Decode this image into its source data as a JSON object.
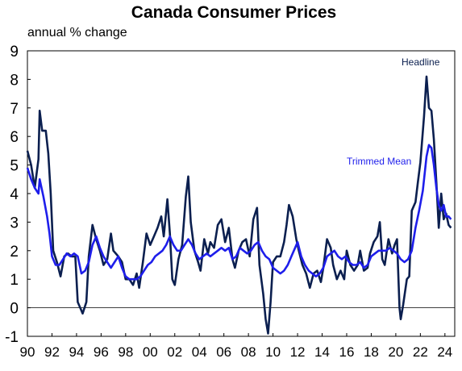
{
  "chart_data": {
    "type": "line",
    "title": "Canada Consumer Prices",
    "subtitle": "annual % change",
    "xlabel": "",
    "ylabel": "",
    "xlim": [
      1990,
      2024.8
    ],
    "ylim": [
      -1,
      9
    ],
    "y_ticks": [
      "9",
      "8",
      "7",
      "6",
      "5",
      "4",
      "3",
      "2",
      "1",
      "0",
      "-1"
    ],
    "x_ticks": [
      "90",
      "92",
      "94",
      "96",
      "98",
      "00",
      "02",
      "04",
      "06",
      "08",
      "10",
      "12",
      "14",
      "16",
      "18",
      "20",
      "22",
      "24"
    ],
    "legend": "inline labels",
    "grid": false,
    "zero_line": true,
    "series": [
      {
        "name": "Headline",
        "color": "#0b1f4f",
        "points": [
          [
            1990.0,
            5.5
          ],
          [
            1990.3,
            5.0
          ],
          [
            1990.6,
            4.2
          ],
          [
            1990.9,
            5.2
          ],
          [
            1991.0,
            6.9
          ],
          [
            1991.2,
            6.2
          ],
          [
            1991.5,
            6.2
          ],
          [
            1991.7,
            5.4
          ],
          [
            1991.9,
            4.0
          ],
          [
            1992.1,
            2.0
          ],
          [
            1992.4,
            1.6
          ],
          [
            1992.7,
            1.1
          ],
          [
            1993.0,
            1.8
          ],
          [
            1993.3,
            1.9
          ],
          [
            1993.6,
            1.8
          ],
          [
            1993.9,
            1.8
          ],
          [
            1994.1,
            0.2
          ],
          [
            1994.3,
            0.0
          ],
          [
            1994.5,
            -0.2
          ],
          [
            1994.8,
            0.2
          ],
          [
            1995.0,
            1.8
          ],
          [
            1995.3,
            2.9
          ],
          [
            1995.6,
            2.4
          ],
          [
            1995.9,
            2.0
          ],
          [
            1996.2,
            1.5
          ],
          [
            1996.5,
            1.7
          ],
          [
            1996.8,
            2.6
          ],
          [
            1997.0,
            2.0
          ],
          [
            1997.4,
            1.8
          ],
          [
            1997.7,
            1.6
          ],
          [
            1998.0,
            1.0
          ],
          [
            1998.3,
            1.0
          ],
          [
            1998.6,
            0.8
          ],
          [
            1998.9,
            1.2
          ],
          [
            1999.1,
            0.7
          ],
          [
            1999.4,
            1.6
          ],
          [
            1999.7,
            2.6
          ],
          [
            2000.0,
            2.2
          ],
          [
            2000.3,
            2.5
          ],
          [
            2000.6,
            2.8
          ],
          [
            2000.9,
            3.2
          ],
          [
            2001.1,
            2.5
          ],
          [
            2001.4,
            3.8
          ],
          [
            2001.6,
            2.6
          ],
          [
            2001.8,
            1.0
          ],
          [
            2002.0,
            0.8
          ],
          [
            2002.3,
            1.7
          ],
          [
            2002.6,
            2.2
          ],
          [
            2002.9,
            3.9
          ],
          [
            2003.1,
            4.6
          ],
          [
            2003.3,
            3.0
          ],
          [
            2003.6,
            2.0
          ],
          [
            2003.9,
            1.6
          ],
          [
            2004.1,
            1.3
          ],
          [
            2004.4,
            2.4
          ],
          [
            2004.7,
            1.9
          ],
          [
            2004.9,
            2.3
          ],
          [
            2005.2,
            2.1
          ],
          [
            2005.5,
            2.9
          ],
          [
            2005.8,
            3.1
          ],
          [
            2006.1,
            2.3
          ],
          [
            2006.4,
            2.8
          ],
          [
            2006.7,
            1.7
          ],
          [
            2006.9,
            1.4
          ],
          [
            2007.2,
            2.0
          ],
          [
            2007.5,
            2.3
          ],
          [
            2007.8,
            2.4
          ],
          [
            2008.1,
            1.8
          ],
          [
            2008.4,
            3.1
          ],
          [
            2008.7,
            3.5
          ],
          [
            2008.9,
            1.5
          ],
          [
            2009.2,
            0.5
          ],
          [
            2009.4,
            -0.4
          ],
          [
            2009.6,
            -0.9
          ],
          [
            2009.8,
            0.2
          ],
          [
            2010.0,
            1.6
          ],
          [
            2010.3,
            1.8
          ],
          [
            2010.6,
            1.8
          ],
          [
            2010.9,
            2.3
          ],
          [
            2011.1,
            2.9
          ],
          [
            2011.3,
            3.6
          ],
          [
            2011.6,
            3.2
          ],
          [
            2011.9,
            2.4
          ],
          [
            2012.1,
            2.0
          ],
          [
            2012.4,
            1.5
          ],
          [
            2012.7,
            1.2
          ],
          [
            2013.0,
            0.7
          ],
          [
            2013.3,
            1.2
          ],
          [
            2013.6,
            1.3
          ],
          [
            2013.9,
            0.9
          ],
          [
            2014.1,
            1.4
          ],
          [
            2014.4,
            2.4
          ],
          [
            2014.7,
            2.1
          ],
          [
            2014.9,
            1.5
          ],
          [
            2015.2,
            1.0
          ],
          [
            2015.5,
            1.3
          ],
          [
            2015.8,
            1.0
          ],
          [
            2016.0,
            2.0
          ],
          [
            2016.3,
            1.5
          ],
          [
            2016.6,
            1.3
          ],
          [
            2016.9,
            1.5
          ],
          [
            2017.1,
            2.0
          ],
          [
            2017.4,
            1.3
          ],
          [
            2017.7,
            1.4
          ],
          [
            2017.9,
            1.9
          ],
          [
            2018.2,
            2.3
          ],
          [
            2018.5,
            2.5
          ],
          [
            2018.7,
            3.0
          ],
          [
            2018.9,
            1.7
          ],
          [
            2019.1,
            1.5
          ],
          [
            2019.4,
            2.4
          ],
          [
            2019.7,
            1.9
          ],
          [
            2019.9,
            2.2
          ],
          [
            2020.1,
            2.4
          ],
          [
            2020.3,
            0.0
          ],
          [
            2020.4,
            -0.4
          ],
          [
            2020.6,
            0.1
          ],
          [
            2020.9,
            1.0
          ],
          [
            2021.1,
            1.1
          ],
          [
            2021.3,
            3.4
          ],
          [
            2021.6,
            3.7
          ],
          [
            2021.8,
            4.4
          ],
          [
            2022.0,
            5.1
          ],
          [
            2022.3,
            6.7
          ],
          [
            2022.5,
            8.1
          ],
          [
            2022.7,
            7.0
          ],
          [
            2022.9,
            6.9
          ],
          [
            2023.1,
            5.9
          ],
          [
            2023.3,
            4.4
          ],
          [
            2023.5,
            2.8
          ],
          [
            2023.7,
            4.0
          ],
          [
            2023.9,
            3.1
          ],
          [
            2024.1,
            3.3
          ],
          [
            2024.3,
            2.9
          ],
          [
            2024.5,
            2.8
          ]
        ]
      },
      {
        "name": "Trimmed Mean",
        "color": "#1e1eeb",
        "points": [
          [
            1990.0,
            4.9
          ],
          [
            1990.3,
            4.5
          ],
          [
            1990.6,
            4.2
          ],
          [
            1990.9,
            4.0
          ],
          [
            1991.0,
            4.5
          ],
          [
            1991.3,
            3.9
          ],
          [
            1991.6,
            3.2
          ],
          [
            1991.8,
            2.6
          ],
          [
            1992.0,
            1.8
          ],
          [
            1992.3,
            1.5
          ],
          [
            1992.6,
            1.5
          ],
          [
            1992.9,
            1.7
          ],
          [
            1993.2,
            1.9
          ],
          [
            1993.5,
            1.8
          ],
          [
            1993.8,
            1.9
          ],
          [
            1994.1,
            1.8
          ],
          [
            1994.4,
            1.2
          ],
          [
            1994.7,
            1.3
          ],
          [
            1995.0,
            1.6
          ],
          [
            1995.3,
            2.2
          ],
          [
            1995.6,
            2.5
          ],
          [
            1995.9,
            2.1
          ],
          [
            1996.2,
            1.8
          ],
          [
            1996.5,
            1.6
          ],
          [
            1996.8,
            1.4
          ],
          [
            1997.1,
            1.6
          ],
          [
            1997.4,
            1.8
          ],
          [
            1997.7,
            1.4
          ],
          [
            1998.0,
            1.1
          ],
          [
            1998.3,
            1.0
          ],
          [
            1998.6,
            1.0
          ],
          [
            1998.9,
            1.0
          ],
          [
            1999.2,
            1.1
          ],
          [
            1999.5,
            1.3
          ],
          [
            1999.8,
            1.5
          ],
          [
            2000.1,
            1.6
          ],
          [
            2000.4,
            1.8
          ],
          [
            2000.7,
            1.9
          ],
          [
            2001.0,
            2.0
          ],
          [
            2001.3,
            2.2
          ],
          [
            2001.6,
            2.5
          ],
          [
            2001.9,
            2.2
          ],
          [
            2002.2,
            2.0
          ],
          [
            2002.5,
            2.0
          ],
          [
            2002.8,
            2.2
          ],
          [
            2003.1,
            2.4
          ],
          [
            2003.4,
            2.2
          ],
          [
            2003.7,
            1.9
          ],
          [
            2004.0,
            1.7
          ],
          [
            2004.3,
            1.8
          ],
          [
            2004.6,
            1.9
          ],
          [
            2004.9,
            1.8
          ],
          [
            2005.2,
            1.9
          ],
          [
            2005.5,
            2.0
          ],
          [
            2005.8,
            2.1
          ],
          [
            2006.1,
            2.0
          ],
          [
            2006.4,
            2.1
          ],
          [
            2006.7,
            1.7
          ],
          [
            2007.0,
            1.8
          ],
          [
            2007.3,
            2.1
          ],
          [
            2007.6,
            2.0
          ],
          [
            2007.9,
            1.9
          ],
          [
            2008.2,
            2.0
          ],
          [
            2008.5,
            2.2
          ],
          [
            2008.8,
            2.3
          ],
          [
            2009.1,
            2.0
          ],
          [
            2009.4,
            1.8
          ],
          [
            2009.7,
            1.7
          ],
          [
            2010.0,
            1.4
          ],
          [
            2010.3,
            1.3
          ],
          [
            2010.6,
            1.2
          ],
          [
            2010.9,
            1.3
          ],
          [
            2011.2,
            1.5
          ],
          [
            2011.5,
            1.8
          ],
          [
            2011.8,
            2.1
          ],
          [
            2012.0,
            2.3
          ],
          [
            2012.3,
            1.8
          ],
          [
            2012.6,
            1.5
          ],
          [
            2012.9,
            1.3
          ],
          [
            2013.2,
            1.2
          ],
          [
            2013.5,
            1.1
          ],
          [
            2013.8,
            1.2
          ],
          [
            2014.1,
            1.4
          ],
          [
            2014.4,
            1.8
          ],
          [
            2014.7,
            1.9
          ],
          [
            2015.0,
            2.0
          ],
          [
            2015.3,
            1.8
          ],
          [
            2015.6,
            1.7
          ],
          [
            2015.9,
            1.8
          ],
          [
            2016.2,
            1.6
          ],
          [
            2016.5,
            1.5
          ],
          [
            2016.8,
            1.5
          ],
          [
            2017.1,
            1.6
          ],
          [
            2017.4,
            1.4
          ],
          [
            2017.7,
            1.5
          ],
          [
            2018.0,
            1.8
          ],
          [
            2018.3,
            1.9
          ],
          [
            2018.6,
            2.0
          ],
          [
            2018.9,
            2.0
          ],
          [
            2019.2,
            2.0
          ],
          [
            2019.5,
            2.1
          ],
          [
            2019.8,
            2.0
          ],
          [
            2020.1,
            1.9
          ],
          [
            2020.4,
            1.7
          ],
          [
            2020.7,
            1.6
          ],
          [
            2021.0,
            1.7
          ],
          [
            2021.3,
            2.0
          ],
          [
            2021.6,
            2.8
          ],
          [
            2021.9,
            3.4
          ],
          [
            2022.2,
            4.1
          ],
          [
            2022.5,
            5.3
          ],
          [
            2022.7,
            5.7
          ],
          [
            2022.9,
            5.6
          ],
          [
            2023.1,
            5.0
          ],
          [
            2023.3,
            4.2
          ],
          [
            2023.5,
            3.6
          ],
          [
            2023.7,
            3.4
          ],
          [
            2023.9,
            3.6
          ],
          [
            2024.1,
            3.2
          ],
          [
            2024.3,
            3.2
          ],
          [
            2024.5,
            3.1
          ]
        ]
      }
    ]
  }
}
